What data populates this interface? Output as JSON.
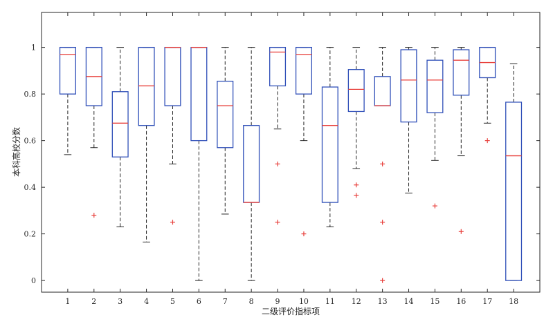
{
  "chart_data": {
    "type": "box",
    "title": "",
    "xlabel": "二级评价指标项",
    "ylabel": "本科高校分数",
    "ylim": [
      -0.05,
      1.15
    ],
    "yticks": [
      0,
      0.2,
      0.4,
      0.6,
      0.8,
      1
    ],
    "ytick_labels": [
      "0",
      "0.2",
      "0.4",
      "0.6",
      "0.8",
      "1"
    ],
    "categories": [
      "1",
      "2",
      "3",
      "4",
      "5",
      "6",
      "7",
      "8",
      "9",
      "10",
      "11",
      "12",
      "13",
      "14",
      "15",
      "16",
      "17",
      "18"
    ],
    "grid": false,
    "colors": {
      "box": "#2f4fb8",
      "median": "#e8403c",
      "whisker": "#222222",
      "outlier": "#e8403c",
      "axis": "#262626"
    },
    "boxes": [
      {
        "category": "1",
        "q1": 0.8,
        "median": 0.97,
        "q3": 1.0,
        "whisker_low": 0.54,
        "whisker_high": 1.0,
        "outliers": []
      },
      {
        "category": "2",
        "q1": 0.75,
        "median": 0.875,
        "q3": 1.0,
        "whisker_low": 0.57,
        "whisker_high": 1.0,
        "outliers": [
          0.28
        ]
      },
      {
        "category": "3",
        "q1": 0.53,
        "median": 0.675,
        "q3": 0.81,
        "whisker_low": 0.23,
        "whisker_high": 1.0,
        "outliers": []
      },
      {
        "category": "4",
        "q1": 0.665,
        "median": 0.835,
        "q3": 1.0,
        "whisker_low": 0.165,
        "whisker_high": 1.0,
        "outliers": []
      },
      {
        "category": "5",
        "q1": 0.75,
        "median": 1.0,
        "q3": 1.0,
        "whisker_low": 0.5,
        "whisker_high": 1.0,
        "outliers": [
          0.25
        ]
      },
      {
        "category": "6",
        "q1": 0.6,
        "median": 1.0,
        "q3": 1.0,
        "whisker_low": 0.0,
        "whisker_high": 1.0,
        "outliers": []
      },
      {
        "category": "7",
        "q1": 0.57,
        "median": 0.75,
        "q3": 0.855,
        "whisker_low": 0.285,
        "whisker_high": 1.0,
        "outliers": []
      },
      {
        "category": "8",
        "q1": 0.335,
        "median": 0.335,
        "q3": 0.665,
        "whisker_low": 0.0,
        "whisker_high": 1.0,
        "outliers": []
      },
      {
        "category": "9",
        "q1": 0.835,
        "median": 0.98,
        "q3": 1.0,
        "whisker_low": 0.65,
        "whisker_high": 1.0,
        "outliers": [
          0.5,
          0.25
        ]
      },
      {
        "category": "10",
        "q1": 0.8,
        "median": 0.97,
        "q3": 1.0,
        "whisker_low": 0.6,
        "whisker_high": 1.0,
        "outliers": [
          0.2
        ]
      },
      {
        "category": "11",
        "q1": 0.335,
        "median": 0.665,
        "q3": 0.83,
        "whisker_low": 0.23,
        "whisker_high": 1.0,
        "outliers": []
      },
      {
        "category": "12",
        "q1": 0.725,
        "median": 0.82,
        "q3": 0.905,
        "whisker_low": 0.48,
        "whisker_high": 1.0,
        "outliers": [
          0.41,
          0.365
        ]
      },
      {
        "category": "13",
        "q1": 0.75,
        "median": 0.75,
        "q3": 0.875,
        "whisker_low": 0.75,
        "whisker_high": 1.0,
        "outliers": [
          0.5,
          0.25,
          0.0
        ]
      },
      {
        "category": "14",
        "q1": 0.68,
        "median": 0.86,
        "q3": 0.99,
        "whisker_low": 0.375,
        "whisker_high": 1.0,
        "outliers": []
      },
      {
        "category": "15",
        "q1": 0.72,
        "median": 0.86,
        "q3": 0.945,
        "whisker_low": 0.515,
        "whisker_high": 1.0,
        "outliers": [
          0.32
        ]
      },
      {
        "category": "16",
        "q1": 0.795,
        "median": 0.945,
        "q3": 0.99,
        "whisker_low": 0.535,
        "whisker_high": 1.0,
        "outliers": [
          0.21
        ]
      },
      {
        "category": "17",
        "q1": 0.87,
        "median": 0.935,
        "q3": 1.0,
        "whisker_low": 0.675,
        "whisker_high": 1.0,
        "outliers": [
          0.6
        ]
      },
      {
        "category": "18",
        "q1": 0.0,
        "median": 0.535,
        "q3": 0.765,
        "whisker_low": 0.0,
        "whisker_high": 0.93,
        "outliers": []
      }
    ]
  }
}
